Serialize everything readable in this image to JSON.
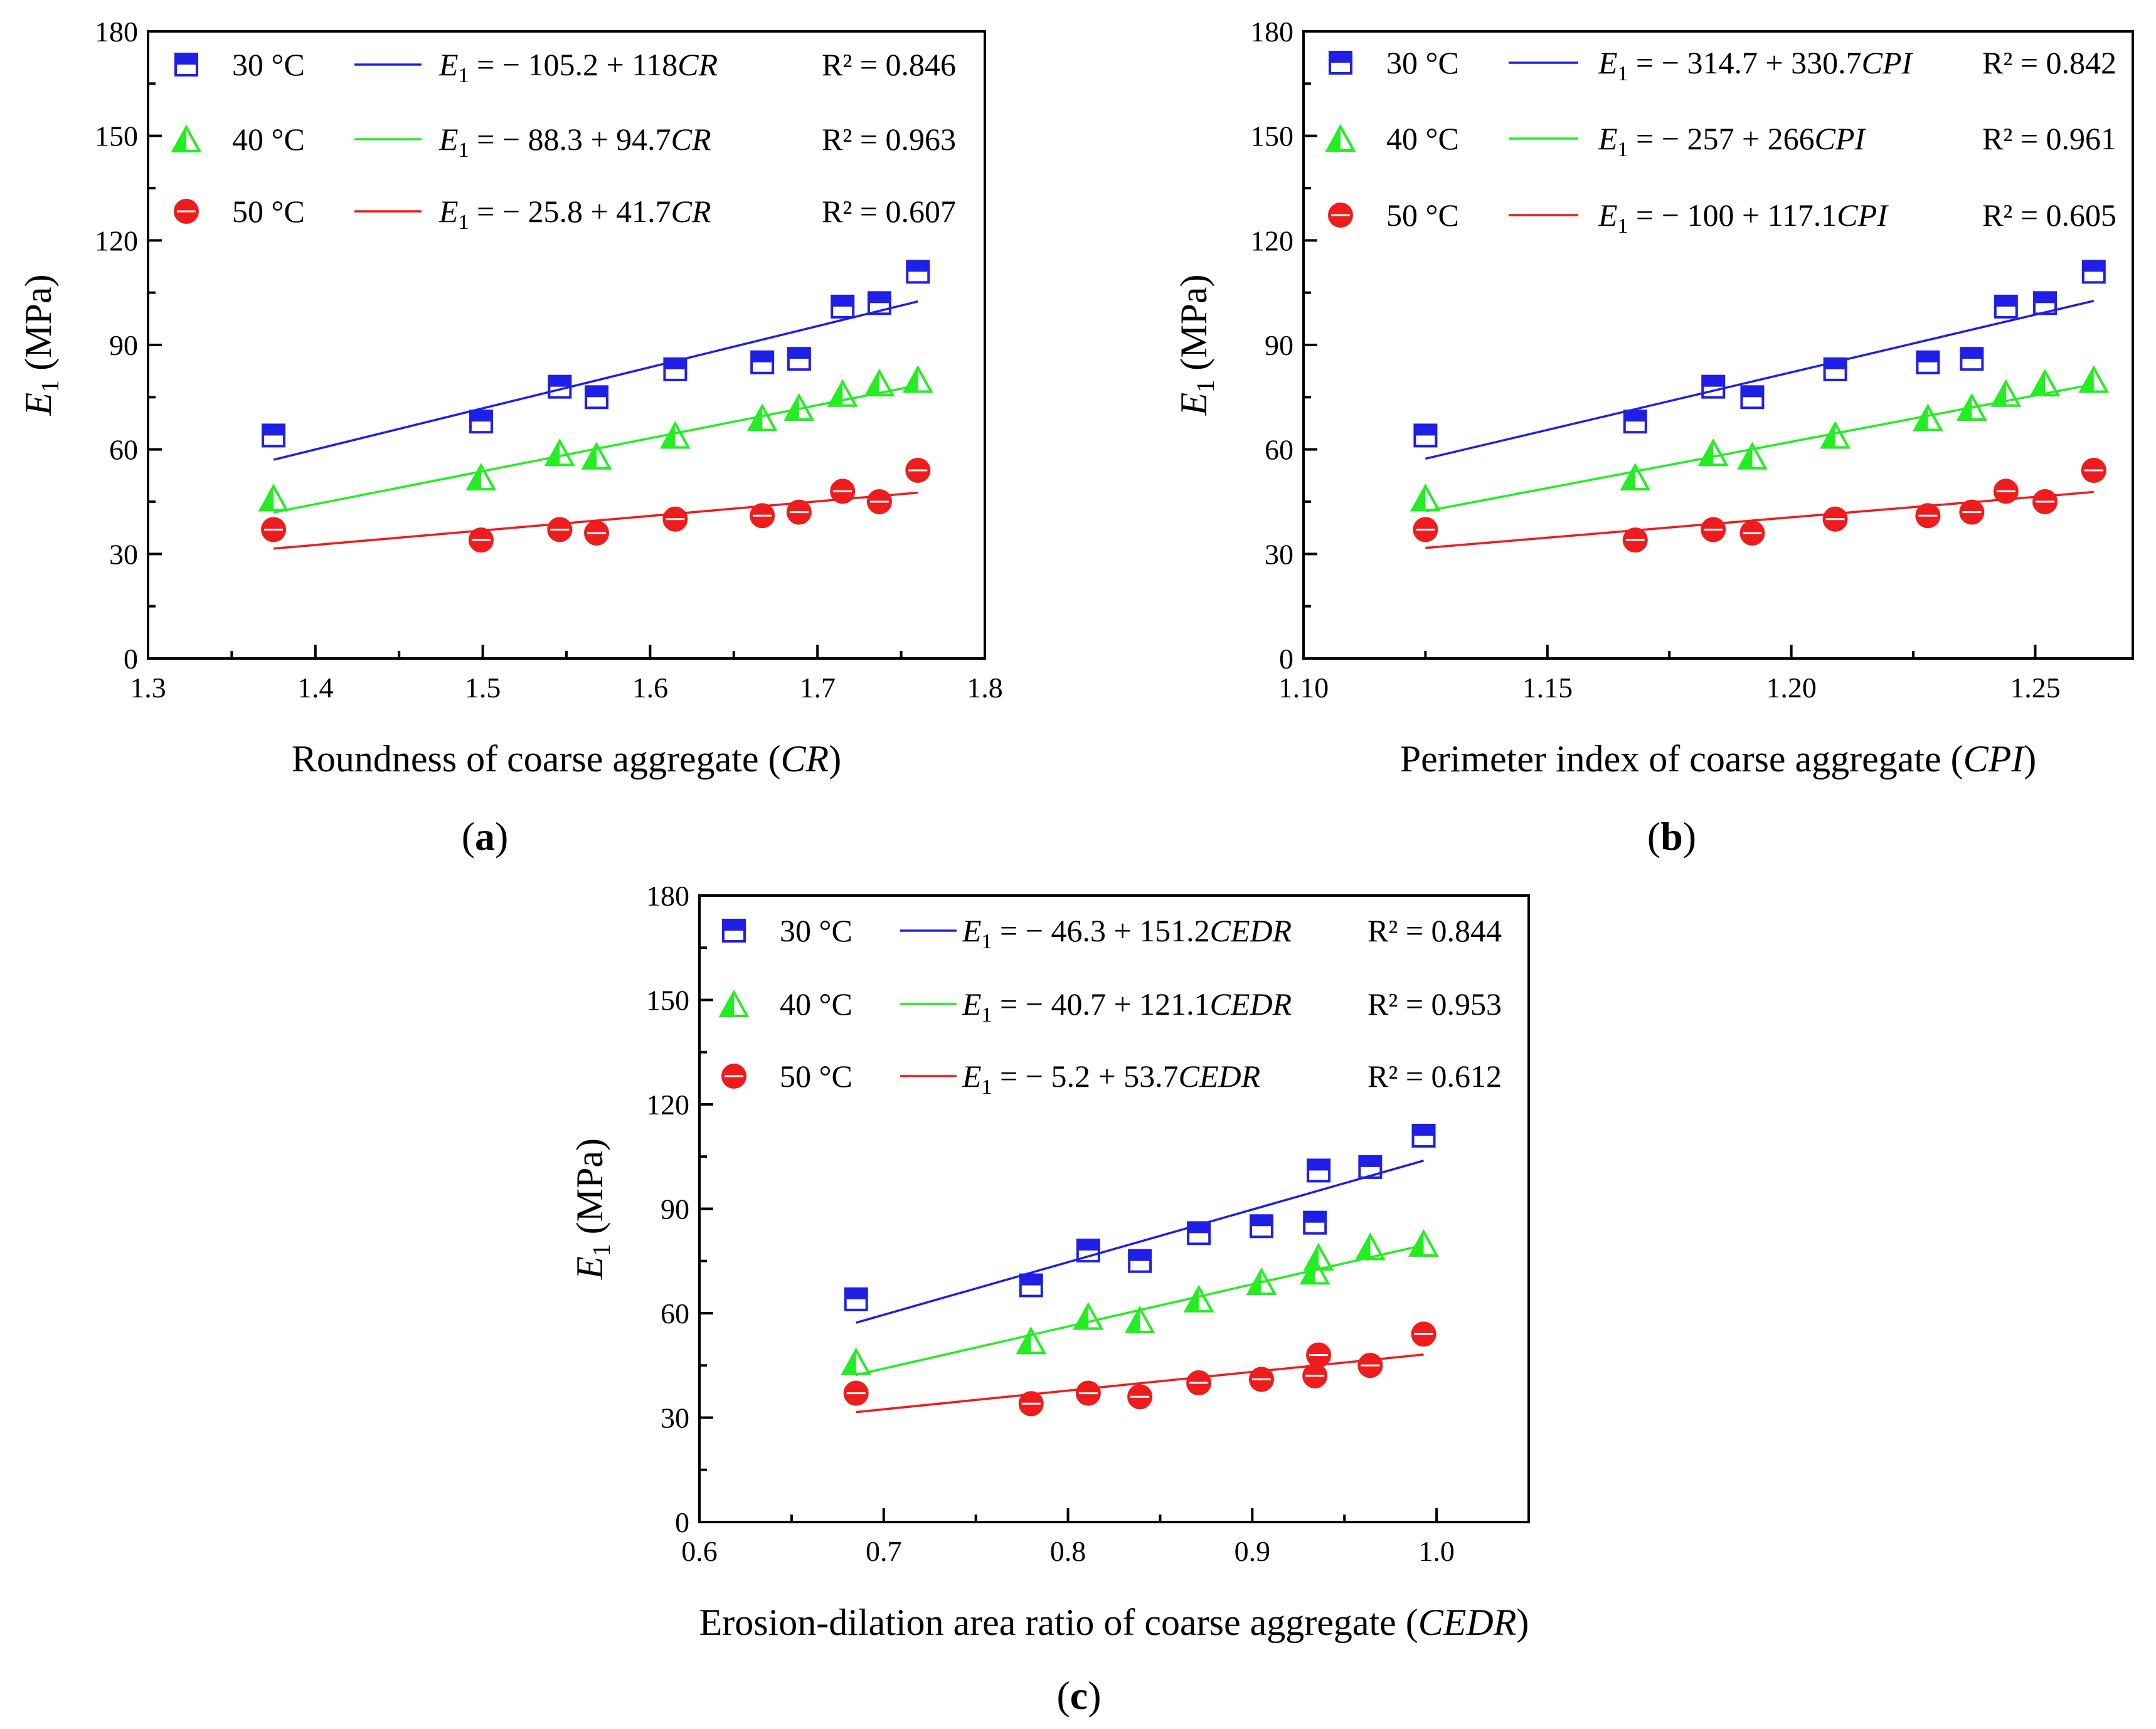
{
  "colors": {
    "t30": "#1f1fe6",
    "t40": "#22ee22",
    "t50": "#ee1c1c",
    "axis": "#000000"
  },
  "chart_data": [
    {
      "type": "scatter",
      "panel_label": "a",
      "xlabel": {
        "main": "Roundness of coarse aggregate (",
        "ital": "CR",
        "end": ")"
      },
      "ylabel": {
        "main": "E",
        "sub": "1",
        "unit": " (MPa)"
      },
      "xlim": [
        1.3,
        1.8
      ],
      "ylim": [
        0,
        180
      ],
      "xticks": [
        "1.3",
        "1.4",
        "1.5",
        "1.6",
        "1.7",
        "1.8"
      ],
      "yticks": [
        "0",
        "30",
        "60",
        "90",
        "120",
        "150",
        "180"
      ],
      "x": [
        1.375,
        1.499,
        1.546,
        1.568,
        1.615,
        1.667,
        1.689,
        1.715,
        1.737,
        1.76
      ],
      "series": [
        {
          "name": "30 °C",
          "marker": "square",
          "color": "#1f1fe6",
          "values": [
            64,
            68,
            78,
            75,
            83,
            85,
            86,
            101,
            102,
            111
          ],
          "fit": {
            "intercept": -105.2,
            "slope": 118
          },
          "eq": {
            "lhs": "E",
            "sub": "1",
            "rhs": " = − 105.2 + 118",
            "var": "CR"
          },
          "r2": "R² = 0.846"
        },
        {
          "name": "40 °C",
          "marker": "triangle",
          "color": "#22ee22",
          "values": [
            46,
            52,
            59,
            58,
            64,
            69,
            72,
            76,
            79,
            80
          ],
          "fit": {
            "intercept": -88.3,
            "slope": 94.7
          },
          "eq": {
            "lhs": "E",
            "sub": "1",
            "rhs": " = − 88.3 + 94.7",
            "var": "CR"
          },
          "r2": "R² = 0.963"
        },
        {
          "name": "50 °C",
          "marker": "circle",
          "color": "#ee1c1c",
          "values": [
            37,
            34,
            37,
            36,
            40,
            41,
            42,
            48,
            45,
            54
          ],
          "fit": {
            "intercept": -25.8,
            "slope": 41.7
          },
          "eq": {
            "lhs": "E",
            "sub": "1",
            "rhs": " = − 25.8 + 41.7",
            "var": "CR"
          },
          "r2": "R² = 0.607"
        }
      ]
    },
    {
      "type": "scatter",
      "panel_label": "b",
      "xlabel": {
        "main": "Perimeter index of coarse aggregate (",
        "ital": "CPI",
        "end": ")"
      },
      "ylabel": {
        "main": "E",
        "sub": "1",
        "unit": " (MPa)"
      },
      "xlim": [
        1.1,
        1.27
      ],
      "ylim": [
        0,
        180
      ],
      "xticks": [
        "1.10",
        "1.15",
        "1.20",
        "1.25"
      ],
      "xtick_values": [
        1.1,
        1.15,
        1.2,
        1.25
      ],
      "yticks": [
        "0",
        "30",
        "60",
        "90",
        "120",
        "150",
        "180"
      ],
      "x": [
        1.125,
        1.168,
        1.184,
        1.192,
        1.209,
        1.228,
        1.237,
        1.244,
        1.252,
        1.262
      ],
      "series": [
        {
          "name": "30 °C",
          "marker": "square",
          "color": "#1f1fe6",
          "values": [
            64,
            68,
            78,
            75,
            83,
            85,
            86,
            101,
            102,
            111
          ],
          "fit": {
            "intercept": -314.7,
            "slope": 330.7
          },
          "eq": {
            "lhs": "E",
            "sub": "1",
            "rhs": " = − 314.7 + 330.7",
            "var": "CPI"
          },
          "r2": "R² = 0.842"
        },
        {
          "name": "40 °C",
          "marker": "triangle",
          "color": "#22ee22",
          "values": [
            46,
            52,
            59,
            58,
            64,
            69,
            72,
            76,
            79,
            80
          ],
          "fit": {
            "intercept": -257,
            "slope": 266
          },
          "eq": {
            "lhs": "E",
            "sub": "1",
            "rhs": " = − 257 + 266",
            "var": "CPI"
          },
          "r2": "R² = 0.961"
        },
        {
          "name": "50 °C",
          "marker": "circle",
          "color": "#ee1c1c",
          "values": [
            37,
            34,
            37,
            36,
            40,
            41,
            42,
            48,
            45,
            54
          ],
          "fit": {
            "intercept": -100,
            "slope": 117.1
          },
          "eq": {
            "lhs": "E",
            "sub": "1",
            "rhs": " = − 100 + 117.1",
            "var": "CPI"
          },
          "r2": "R² = 0.605"
        }
      ]
    },
    {
      "type": "scatter",
      "panel_label": "c",
      "xlabel": {
        "main": "Erosion-dilation area ratio of coarse aggregate (",
        "ital": "CEDR",
        "end": ")"
      },
      "ylabel": {
        "main": "E",
        "sub": "1",
        "unit": " (MPa)"
      },
      "xlim": [
        0.6,
        1.05
      ],
      "ylim": [
        0,
        180
      ],
      "xticks": [
        "0.6",
        "0.7",
        "0.8",
        "0.9",
        "1.0"
      ],
      "xtick_values": [
        0.6,
        0.7,
        0.8,
        0.9,
        1.0
      ],
      "yticks": [
        "0",
        "30",
        "60",
        "90",
        "120",
        "150",
        "180"
      ],
      "x": [
        0.685,
        0.78,
        0.811,
        0.839,
        0.871,
        0.905,
        0.934,
        0.936,
        0.964,
        0.993
      ],
      "series": [
        {
          "name": "30 °C",
          "marker": "square",
          "color": "#1f1fe6",
          "values": [
            64,
            68,
            78,
            75,
            83,
            85,
            86,
            101,
            102,
            111
          ],
          "fit": {
            "intercept": -46.3,
            "slope": 151.2
          },
          "eq": {
            "lhs": "E",
            "sub": "1",
            "rhs": " = − 46.3 + 151.2",
            "var": "CEDR"
          },
          "r2": "R² = 0.844"
        },
        {
          "name": "40 °C",
          "marker": "triangle",
          "color": "#22ee22",
          "values": [
            46,
            52,
            59,
            58,
            64,
            69,
            72,
            76,
            79,
            80
          ],
          "fit": {
            "intercept": -40.7,
            "slope": 121.1
          },
          "eq": {
            "lhs": "E",
            "sub": "1",
            "rhs": " = − 40.7 + 121.1",
            "var": "CEDR"
          },
          "r2": "R² = 0.953"
        },
        {
          "name": "50 °C",
          "marker": "circle",
          "color": "#ee1c1c",
          "values": [
            37,
            34,
            37,
            36,
            40,
            41,
            42,
            48,
            45,
            54
          ],
          "fit": {
            "intercept": -5.2,
            "slope": 53.7
          },
          "eq": {
            "lhs": "E",
            "sub": "1",
            "rhs": " = − 5.2 + 53.7",
            "var": "CEDR"
          },
          "r2": "R² = 0.612"
        }
      ]
    }
  ]
}
